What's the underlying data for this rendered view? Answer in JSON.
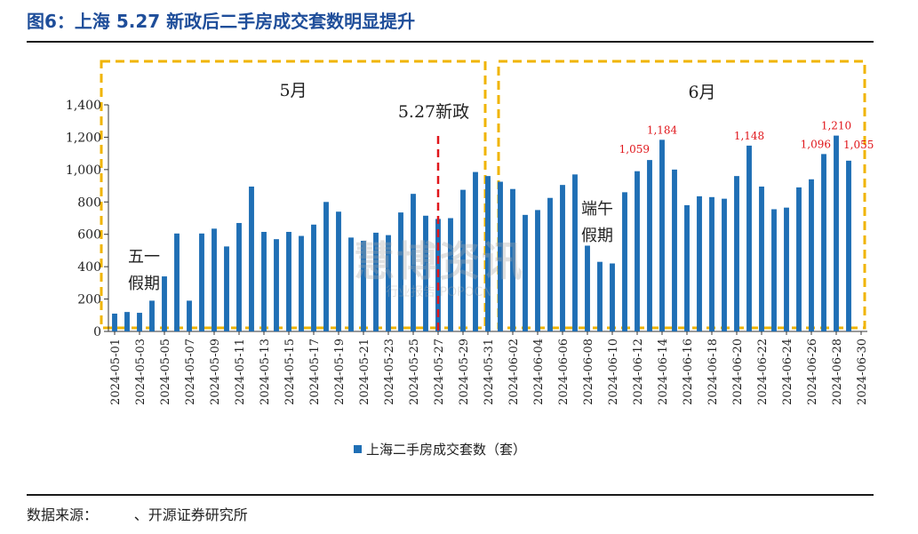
{
  "header": {
    "title": "图6：上海 5.27 新政后二手房成交套数明显提升"
  },
  "footer": {
    "source": "数据来源：        、开源证券研究所"
  },
  "watermark": {
    "main": "慧博资讯",
    "sub": "行业报告 POPOCN"
  },
  "colors": {
    "bar": "#1f6fb5",
    "dashed_box": "#f0b400",
    "policy_line": "#e0161b",
    "label_red": "#e0161b"
  },
  "chart_data": {
    "type": "bar",
    "ylim": [
      0,
      1400
    ],
    "yticks": [
      0,
      200,
      400,
      600,
      800,
      1000,
      1200,
      1400
    ],
    "ytick_labels": [
      "0",
      "200",
      "400",
      "600",
      "800",
      "1,000",
      "1,200",
      "1,400"
    ],
    "xlabel": "",
    "ylabel": "",
    "categories": [
      "2024-05-01",
      "2024-05-02",
      "2024-05-03",
      "2024-05-04",
      "2024-05-05",
      "2024-05-06",
      "2024-05-07",
      "2024-05-08",
      "2024-05-09",
      "2024-05-10",
      "2024-05-11",
      "2024-05-12",
      "2024-05-13",
      "2024-05-14",
      "2024-05-15",
      "2024-05-16",
      "2024-05-17",
      "2024-05-18",
      "2024-05-19",
      "2024-05-20",
      "2024-05-21",
      "2024-05-22",
      "2024-05-23",
      "2024-05-24",
      "2024-05-25",
      "2024-05-26",
      "2024-05-27",
      "2024-05-28",
      "2024-05-29",
      "2024-05-30",
      "2024-05-31",
      "2024-06-01",
      "2024-06-02",
      "2024-06-03",
      "2024-06-04",
      "2024-06-05",
      "2024-06-06",
      "2024-06-07",
      "2024-06-08",
      "2024-06-09",
      "2024-06-10",
      "2024-06-11",
      "2024-06-12",
      "2024-06-13",
      "2024-06-14",
      "2024-06-15",
      "2024-06-16",
      "2024-06-17",
      "2024-06-18",
      "2024-06-19",
      "2024-06-20",
      "2024-06-21",
      "2024-06-22",
      "2024-06-23",
      "2024-06-24",
      "2024-06-25",
      "2024-06-26",
      "2024-06-27",
      "2024-06-28",
      "2024-06-29",
      "2024-06-30"
    ],
    "tick_labels": [
      "2024-05-01",
      "2024-05-03",
      "2024-05-05",
      "2024-05-07",
      "2024-05-09",
      "2024-05-11",
      "2024-05-13",
      "2024-05-15",
      "2024-05-17",
      "2024-05-19",
      "2024-05-21",
      "2024-05-23",
      "2024-05-25",
      "2024-05-27",
      "2024-05-29",
      "2024-05-31",
      "2024-06-02",
      "2024-06-04",
      "2024-06-06",
      "2024-06-08",
      "2024-06-10",
      "2024-06-12",
      "2024-06-14",
      "2024-06-16",
      "2024-06-18",
      "2024-06-20",
      "2024-06-22",
      "2024-06-24",
      "2024-06-26",
      "2024-06-28",
      "2024-06-30"
    ],
    "series": [
      {
        "name": "上海二手房成交套数（套）",
        "values": [
          110,
          120,
          115,
          190,
          340,
          605,
          190,
          605,
          635,
          525,
          670,
          895,
          615,
          570,
          615,
          590,
          660,
          800,
          740,
          580,
          560,
          610,
          595,
          735,
          850,
          715,
          695,
          700,
          875,
          985,
          960,
          925,
          880,
          720,
          750,
          825,
          905,
          970,
          530,
          430,
          420,
          860,
          990,
          1059,
          1184,
          1000,
          780,
          835,
          830,
          820,
          960,
          1148,
          895,
          755,
          765,
          890,
          940,
          1096,
          1210,
          1055,
          0
        ]
      }
    ],
    "point_labels": [
      {
        "index": 43,
        "text": "1,059"
      },
      {
        "index": 44,
        "text": "1,184"
      },
      {
        "index": 51,
        "text": "1,148"
      },
      {
        "index": 57,
        "text": "1,096"
      },
      {
        "index": 58,
        "text": "1,210"
      },
      {
        "index": 59,
        "text": "1,055"
      }
    ],
    "legend": {
      "text": "上海二手房成交套数（套）",
      "placement": "bottom-center"
    },
    "annotations": {
      "month_may": "5月",
      "month_june": "6月",
      "policy": "5.27新政",
      "labor_day_1": "五一",
      "labor_day_2": "假期",
      "dragon_boat_1": "端午",
      "dragon_boat_2": "假期"
    }
  }
}
